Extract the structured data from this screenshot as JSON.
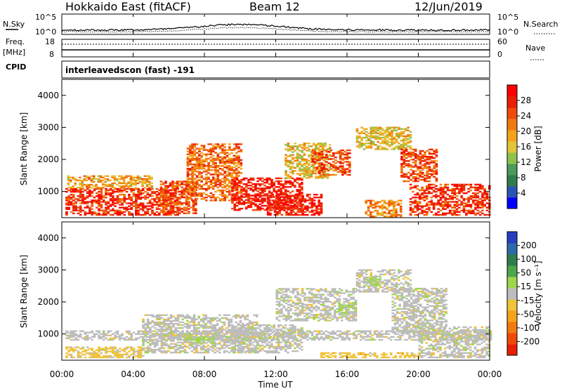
{
  "header": {
    "title": "Hokkaido East (fitACF)",
    "beam": "Beam 12",
    "date": "12/Jun/2019"
  },
  "nsky_panel": {
    "left_label": "N.Sky",
    "right_label": "N.Search",
    "tick_top": "10^5",
    "tick_bottom": "10^0"
  },
  "freq_panel": {
    "label_line1": "Freq.",
    "label_line2": "[MHz]",
    "left_ticks": [
      "18",
      "8"
    ],
    "right_ticks": [
      "60",
      "0"
    ],
    "right_label": "Nave",
    "cpid_label": "CPID"
  },
  "cpid_text": "interleavedscon (fast) -191",
  "x_axis": {
    "label": "Time UT",
    "ticks": [
      "00:00",
      "04:00",
      "08:00",
      "12:00",
      "16:00",
      "20:00",
      "00:00"
    ]
  },
  "y_axis": {
    "label": "Slant Range [km]",
    "ticks": [
      "4000",
      "3000",
      "2000",
      "1000"
    ]
  },
  "power_colorbar": {
    "label": "Power [dB]",
    "ticks": [
      "28",
      "24",
      "20",
      "16",
      "12",
      "8",
      "4"
    ],
    "colors": [
      "#0000ff",
      "#2a55b4",
      "#2f7d4b",
      "#4d9a5a",
      "#8ec24b",
      "#e2c43a",
      "#f5a21c",
      "#f07a0f",
      "#ee4a0a",
      "#e81e05",
      "#ff0000"
    ]
  },
  "velocity_colorbar": {
    "label": "Velocity [m s⁻¹]",
    "ticks": [
      "200",
      "100",
      "50",
      "15",
      "-15",
      "-50",
      "-100",
      "-200"
    ],
    "colors": [
      "#2a3dc2",
      "#2a6aa8",
      "#2f7d4b",
      "#4ea64c",
      "#9fd64c",
      "#bdbdbd",
      "#f0c43a",
      "#f5a21c",
      "#f07a0f",
      "#ee4a0a",
      "#e81e05"
    ]
  },
  "chart_data": [
    {
      "type": "heatmap",
      "panel": "power",
      "xlabel": "Time UT",
      "ylabel": "Slant Range [km]",
      "xlim_hours": [
        0,
        24
      ],
      "ylim_km": [
        180,
        4500
      ],
      "colorbar": "Power [dB]",
      "regions": [
        {
          "t0": 0.2,
          "t1": 6.5,
          "r0": 250,
          "r1": 1100,
          "value_db": 26
        },
        {
          "t0": 0.3,
          "t1": 5.0,
          "r0": 1100,
          "r1": 1500,
          "value_db": 18
        },
        {
          "t0": 5.5,
          "t1": 7.5,
          "r0": 300,
          "r1": 1300,
          "value_db": 24
        },
        {
          "t0": 7.0,
          "t1": 10.0,
          "r0": 700,
          "r1": 2500,
          "value_db": 22
        },
        {
          "t0": 9.5,
          "t1": 13.5,
          "r0": 400,
          "r1": 1400,
          "value_db": 28
        },
        {
          "t0": 11.5,
          "t1": 14.5,
          "r0": 250,
          "r1": 900,
          "value_db": 28
        },
        {
          "t0": 12.5,
          "t1": 15.0,
          "r0": 1400,
          "r1": 2500,
          "value_db": 16
        },
        {
          "t0": 14.0,
          "t1": 16.2,
          "r0": 1500,
          "r1": 2300,
          "value_db": 24
        },
        {
          "t0": 16.5,
          "t1": 19.5,
          "r0": 2300,
          "r1": 3000,
          "value_db": 16
        },
        {
          "t0": 19.0,
          "t1": 21.0,
          "r0": 1300,
          "r1": 2300,
          "value_db": 24
        },
        {
          "t0": 19.5,
          "t1": 24.0,
          "r0": 250,
          "r1": 1200,
          "value_db": 26
        },
        {
          "t0": 17.0,
          "t1": 19.0,
          "r0": 200,
          "r1": 700,
          "value_db": 20
        }
      ]
    },
    {
      "type": "heatmap",
      "panel": "velocity",
      "xlabel": "Time UT",
      "ylabel": "Slant Range [km]",
      "xlim_hours": [
        0,
        24
      ],
      "ylim_km": [
        180,
        4500
      ],
      "colorbar": "Velocity [m s-1]",
      "regions": [
        {
          "t0": 0.2,
          "t1": 24.0,
          "r0": 800,
          "r1": 1100,
          "value_ms": 0
        },
        {
          "t0": 0.2,
          "t1": 4.5,
          "r0": 250,
          "r1": 600,
          "value_ms": -40
        },
        {
          "t0": 4.5,
          "t1": 11.0,
          "r0": 400,
          "r1": 1600,
          "value_ms": 0
        },
        {
          "t0": 7.0,
          "t1": 8.5,
          "r0": 700,
          "r1": 900,
          "value_ms": 40
        },
        {
          "t0": 9.5,
          "t1": 13.5,
          "r0": 400,
          "r1": 1300,
          "value_ms": 0
        },
        {
          "t0": 12.0,
          "t1": 16.5,
          "r0": 1400,
          "r1": 2400,
          "value_ms": 0
        },
        {
          "t0": 15.5,
          "t1": 16.5,
          "r0": 1600,
          "r1": 2000,
          "value_ms": 40
        },
        {
          "t0": 16.5,
          "t1": 19.5,
          "r0": 2300,
          "r1": 3000,
          "value_ms": 0
        },
        {
          "t0": 17.0,
          "t1": 17.8,
          "r0": 2500,
          "r1": 2800,
          "value_ms": 40
        },
        {
          "t0": 18.5,
          "t1": 21.5,
          "r0": 1000,
          "r1": 2400,
          "value_ms": 0
        },
        {
          "t0": 20.0,
          "t1": 24.0,
          "r0": 250,
          "r1": 1200,
          "value_ms": 0
        },
        {
          "t0": 14.5,
          "t1": 20.0,
          "r0": 250,
          "r1": 400,
          "value_ms": -50
        }
      ]
    }
  ]
}
